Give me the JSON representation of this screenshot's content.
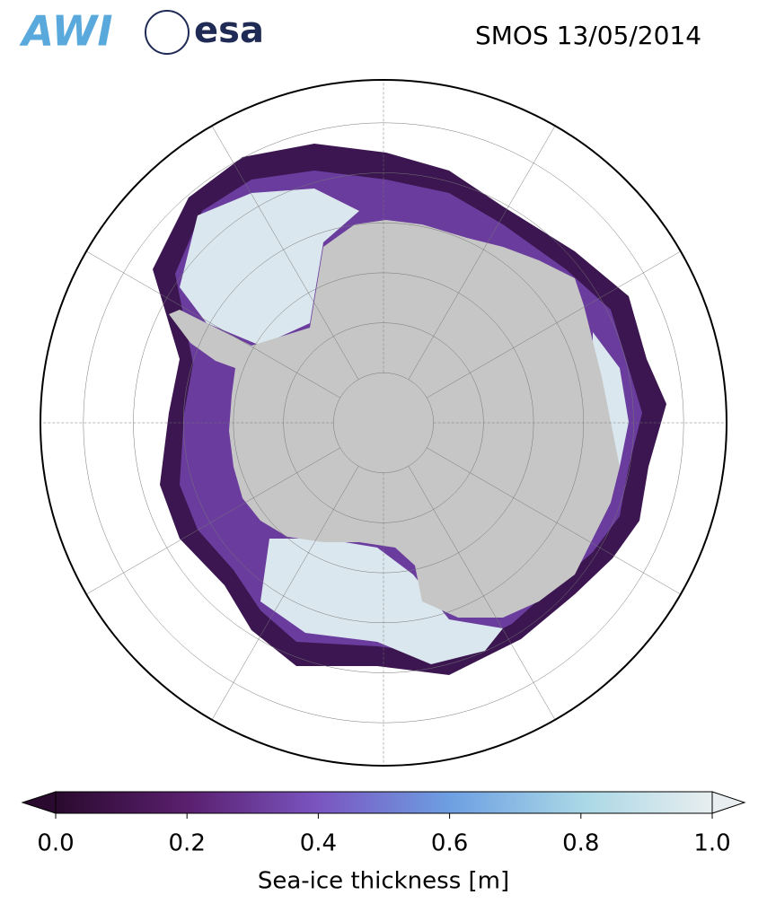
{
  "header": {
    "logos": [
      "AWI",
      "esa"
    ],
    "title": "SMOS 13/05/2014"
  },
  "colorbar": {
    "label": "Sea-ice thickness [m]",
    "lim": [
      0,
      1
    ],
    "ticks": [
      {
        "value": 0,
        "label": "0.0"
      },
      {
        "value": 0.2,
        "label": "0.2"
      },
      {
        "value": 0.4,
        "label": "0.4"
      },
      {
        "value": 0.6,
        "label": "0.6"
      },
      {
        "value": 0.8,
        "label": "0.8"
      },
      {
        "value": 1,
        "label": "1.0"
      }
    ],
    "colors": [
      "#2a0a2e",
      "#5a1f6e",
      "#7a55c0",
      "#6d9fe2",
      "#a9d7e6",
      "#e8eeef"
    ]
  }
}
